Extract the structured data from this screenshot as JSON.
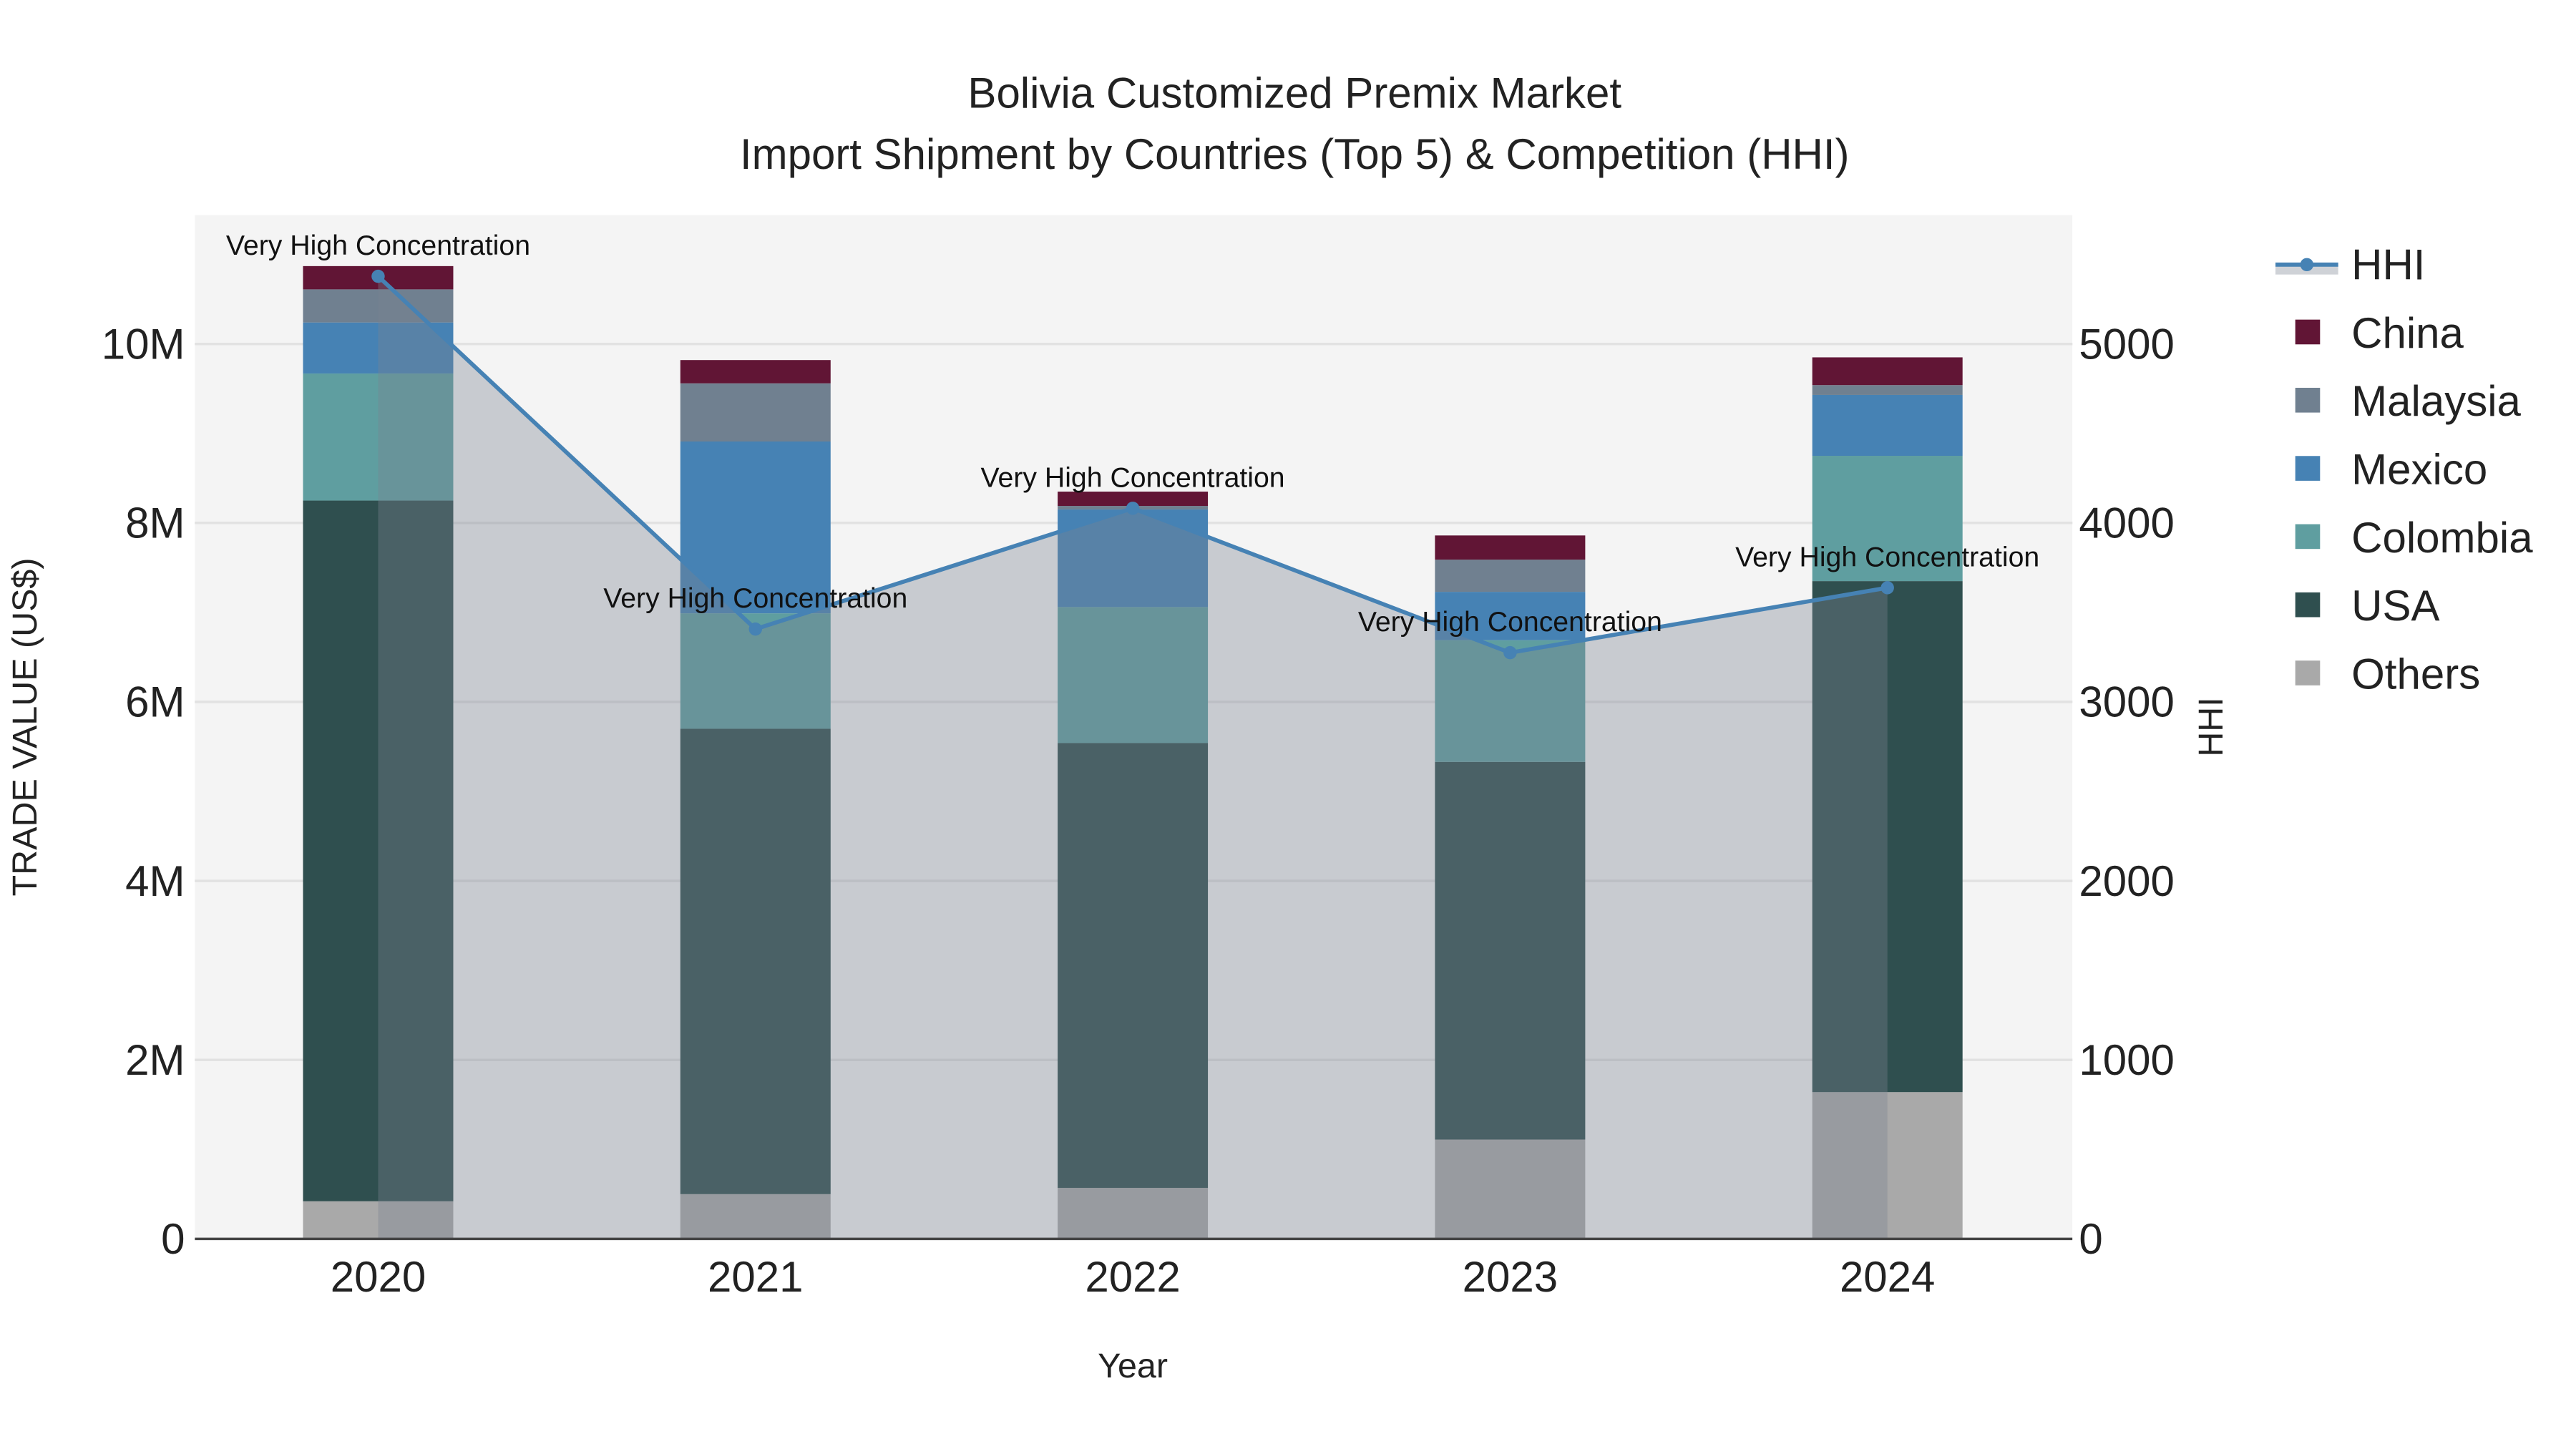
{
  "chart_data": {
    "type": "bar",
    "title": "Bolivia Customized Premix Market",
    "subtitle": "Import Shipment by Countries (Top 5) & Competition (HHI)",
    "xlabel": "Year",
    "ylabel": "TRADE VALUE (US$)",
    "y2label": "HHI",
    "categories": [
      "2020",
      "2021",
      "2022",
      "2023",
      "2024"
    ],
    "ylim": [
      0,
      11440000
    ],
    "y2lim": [
      0,
      5720
    ],
    "yticks": [
      {
        "v": 0,
        "label": "0"
      },
      {
        "v": 2000000,
        "label": "2M"
      },
      {
        "v": 4000000,
        "label": "4M"
      },
      {
        "v": 6000000,
        "label": "6M"
      },
      {
        "v": 8000000,
        "label": "8M"
      },
      {
        "v": 10000000,
        "label": "10M"
      }
    ],
    "y2ticks": [
      {
        "v": 0,
        "label": "0"
      },
      {
        "v": 1000,
        "label": "1000"
      },
      {
        "v": 2000,
        "label": "2000"
      },
      {
        "v": 3000,
        "label": "3000"
      },
      {
        "v": 4000,
        "label": "4000"
      },
      {
        "v": 5000,
        "label": "5000"
      }
    ],
    "grid": true,
    "legend_placement": "right",
    "series": [
      {
        "name": "Others",
        "color": "#a9a9a9",
        "values": [
          420000,
          500000,
          570000,
          1110000,
          1640000
        ]
      },
      {
        "name": "USA",
        "color": "#2f4f4f",
        "values": [
          7830000,
          5200000,
          4970000,
          4220000,
          5710000
        ]
      },
      {
        "name": "Colombia",
        "color": "#5f9ea0",
        "values": [
          1420000,
          1290000,
          1520000,
          1360000,
          1400000
        ]
      },
      {
        "name": "Mexico",
        "color": "#4682b4",
        "values": [
          570000,
          1920000,
          1090000,
          540000,
          680000
        ]
      },
      {
        "name": "Malaysia",
        "color": "#708090",
        "values": [
          370000,
          650000,
          40000,
          360000,
          110000
        ]
      },
      {
        "name": "China",
        "color": "#611535",
        "values": [
          260000,
          260000,
          160000,
          270000,
          310000
        ]
      }
    ],
    "hhi": {
      "name": "HHI",
      "color": "#4682b4",
      "values": [
        5378,
        3407,
        4082,
        3275,
        3638
      ],
      "annotations": [
        "Very High Concentration",
        "Very High Concentration",
        "Very High Concentration",
        "Very High Concentration",
        "Very High Concentration"
      ]
    },
    "legend": [
      "HHI",
      "China",
      "Malaysia",
      "Mexico",
      "Colombia",
      "USA",
      "Others"
    ]
  }
}
